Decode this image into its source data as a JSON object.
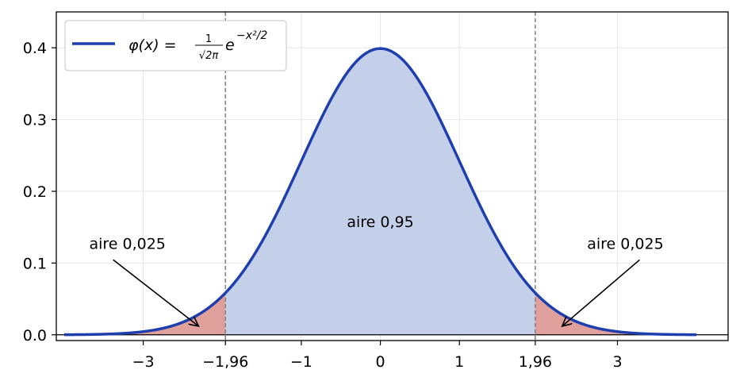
{
  "chart_data": {
    "type": "area",
    "title": "",
    "xlabel": "",
    "ylabel": "",
    "xlim": [
      -4.1,
      4.4
    ],
    "ylim": [
      -0.008,
      0.45
    ],
    "grid": true,
    "legend_placement": "top-left",
    "colors": {
      "curve": "#1f3fae",
      "center_fill": "#c4cfe9",
      "tail_fill": "#e0a19c",
      "guide_line": "#7f7f7f",
      "grid": "#e6e6e6"
    },
    "x_ticks": [
      {
        "value": -3,
        "label": "−3"
      },
      {
        "value": -1.96,
        "label": "−1,96"
      },
      {
        "value": -1,
        "label": "−1"
      },
      {
        "value": 0,
        "label": "0"
      },
      {
        "value": 1,
        "label": "1"
      },
      {
        "value": 1.96,
        "label": "1,96"
      },
      {
        "value": 3,
        "label": "3"
      }
    ],
    "y_ticks": [
      {
        "value": 0.0,
        "label": "0.0"
      },
      {
        "value": 0.1,
        "label": "0.1"
      },
      {
        "value": 0.2,
        "label": "0.2"
      },
      {
        "value": 0.3,
        "label": "0.3"
      },
      {
        "value": 0.4,
        "label": "0.4"
      }
    ],
    "series": [
      {
        "name": "φ(x) = 1/√2π e^(−x²/2)",
        "x": [
          -4,
          -3.5,
          -3,
          -2.5,
          -2,
          -1.96,
          -1.5,
          -1,
          -0.5,
          0,
          0.5,
          1,
          1.5,
          1.96,
          2,
          2.5,
          3,
          3.5,
          4
        ],
        "y": [
          0.0001,
          0.0009,
          0.0044,
          0.0175,
          0.054,
          0.0584,
          0.1295,
          0.242,
          0.3521,
          0.3989,
          0.3521,
          0.242,
          0.1295,
          0.0584,
          0.054,
          0.0175,
          0.0044,
          0.0009,
          0.0001
        ]
      }
    ],
    "shaded_regions": [
      {
        "from": -4,
        "to": -1.96,
        "color": "#e0a19c"
      },
      {
        "from": -1.96,
        "to": 1.96,
        "color": "#c4cfe9"
      },
      {
        "from": 1.96,
        "to": 4,
        "color": "#e0a19c"
      }
    ],
    "vertical_lines": [
      -1.96,
      1.96
    ],
    "legend": {
      "prefix": "φ(x) = ",
      "frac_num": "1",
      "frac_den": "√2π",
      "base": "e",
      "exponent": "−x²/2"
    },
    "annotations": [
      {
        "text": "aire 0,95",
        "x": 0,
        "y": 0.15
      },
      {
        "text": "aire 0,025",
        "x": -3.2,
        "y": 0.12,
        "arrow_to": [
          -2.3,
          0.012
        ]
      },
      {
        "text": "aire 0,025",
        "x": 3.1,
        "y": 0.12,
        "arrow_to": [
          2.3,
          0.012
        ]
      }
    ]
  }
}
